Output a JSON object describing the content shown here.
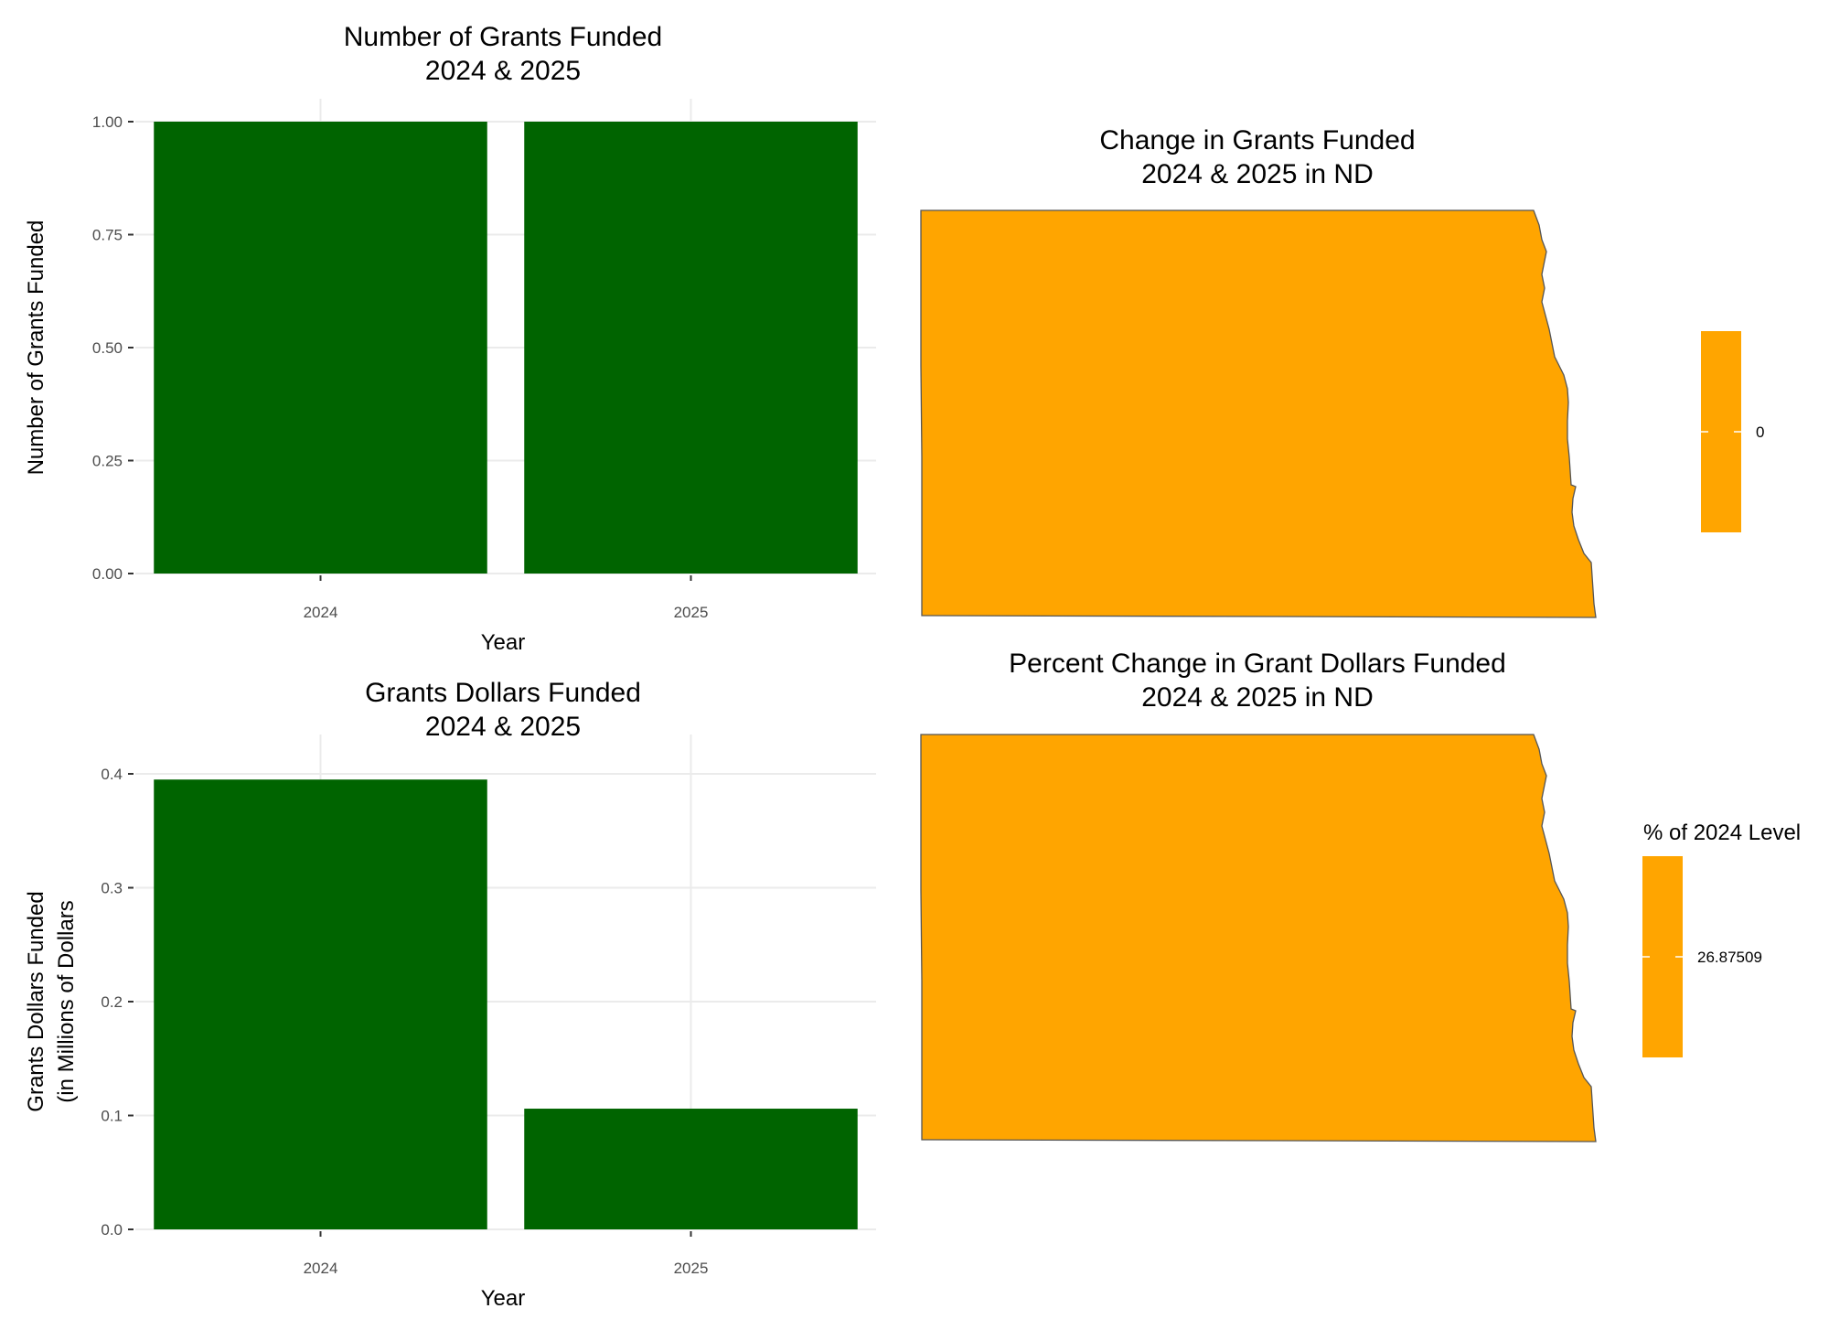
{
  "colors": {
    "bar": "#006400",
    "map_fill": "#FFA500",
    "map_outline": "#555555",
    "grid": "#ebebeb"
  },
  "chart_data": [
    {
      "type": "bar",
      "title": "Number of Grants Funded",
      "subtitle": "2024 & 2025",
      "xlabel": "Year",
      "ylabel": "Number of Grants Funded",
      "categories": [
        "2024",
        "2025"
      ],
      "values": [
        1,
        1
      ],
      "ylim": [
        0,
        1
      ],
      "yticks": [
        "0.00",
        "0.25",
        "0.50",
        "0.75",
        "1.00"
      ],
      "grid": true
    },
    {
      "type": "bar",
      "title": "Grants Dollars Funded",
      "subtitle": "2024 & 2025",
      "xlabel": "Year",
      "ylabel": "Grants Dollars Funded",
      "ylabel2": "(in Millions of Dollars",
      "categories": [
        "2024",
        "2025"
      ],
      "values": [
        0.395,
        0.106
      ],
      "ylim": [
        0,
        0.4
      ],
      "yticks": [
        "0.0",
        "0.1",
        "0.2",
        "0.3",
        "0.4"
      ],
      "grid": true
    },
    {
      "type": "map",
      "title": "Change in Grants Funded",
      "subtitle": "2024 & 2025 in ND",
      "region": "North Dakota",
      "value": 0,
      "legend_title": "",
      "legend_labels": [
        "0"
      ],
      "legend_placement": "right"
    },
    {
      "type": "map",
      "title": "Percent Change in Grant Dollars Funded",
      "subtitle": "2024 & 2025 in ND",
      "region": "North Dakota",
      "value": 26.87509,
      "legend_title": "% of 2024 Level",
      "legend_labels": [
        "26.87509"
      ],
      "legend_placement": "right"
    }
  ]
}
